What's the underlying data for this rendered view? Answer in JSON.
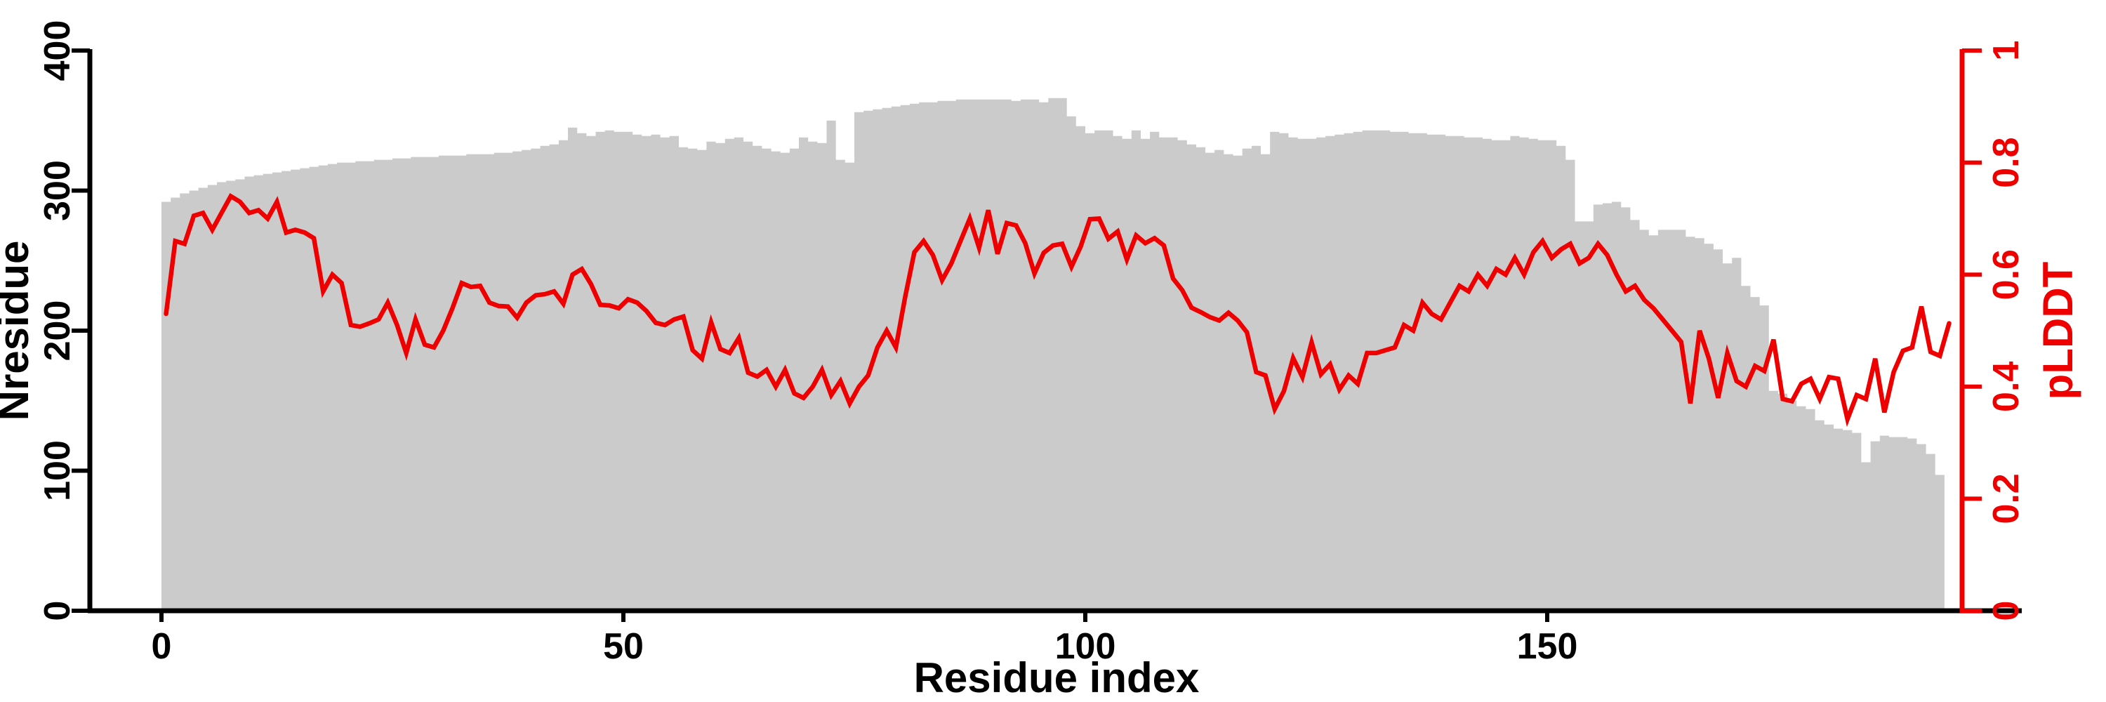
{
  "chart_data": {
    "type": "bar+line",
    "title": "",
    "x": {
      "label": "Residue index",
      "ticks": [
        0,
        50,
        100,
        150
      ],
      "tick_labels": [
        "0",
        "50",
        "100",
        "150"
      ],
      "range": [
        0,
        194
      ]
    },
    "y_left": {
      "label": "Nresidue",
      "ticks": [
        0,
        100,
        200,
        300,
        400
      ],
      "tick_labels": [
        "0",
        "100",
        "200",
        "300",
        "400"
      ],
      "range": [
        0,
        400
      ],
      "color": "#000000"
    },
    "y_right": {
      "label": "pLDDT",
      "ticks": [
        0,
        0.2,
        0.4,
        0.6,
        0.8,
        1
      ],
      "tick_labels": [
        "0",
        "0.2",
        "0.4",
        "0.6",
        "0.8",
        "1"
      ],
      "range": [
        0,
        1
      ],
      "color": "#ee0000"
    },
    "grid": false,
    "legend": "none",
    "bars": {
      "name": "Nresidue",
      "color": "#cbcbcb",
      "values": [
        292,
        295,
        298,
        300,
        302,
        304,
        306,
        307,
        308,
        310,
        311,
        312,
        313,
        314,
        315,
        316,
        317,
        318,
        319,
        320,
        320,
        321,
        321,
        322,
        322,
        323,
        323,
        324,
        324,
        324,
        325,
        325,
        325,
        326,
        326,
        326,
        327,
        327,
        328,
        329,
        330,
        332,
        333,
        336,
        345,
        341,
        339,
        342,
        343,
        342,
        342,
        340,
        339,
        340,
        338,
        339,
        331,
        330,
        329,
        335,
        334,
        337,
        338,
        335,
        332,
        330,
        328,
        327,
        330,
        338,
        335,
        334,
        350,
        322,
        320,
        356,
        357,
        358,
        359,
        360,
        361,
        362,
        363,
        363,
        364,
        364,
        365,
        365,
        365,
        365,
        365,
        365,
        364,
        365,
        365,
        363,
        366,
        366,
        353,
        346,
        341,
        343,
        343,
        339,
        337,
        343,
        337,
        342,
        338,
        338,
        336,
        333,
        331,
        327,
        329,
        326,
        325,
        330,
        332,
        326,
        342,
        341,
        338,
        337,
        337,
        338,
        339,
        340,
        341,
        342,
        343,
        343,
        343,
        342,
        342,
        341,
        341,
        340,
        340,
        339,
        339,
        338,
        338,
        337,
        336,
        336,
        339,
        338,
        337,
        336,
        336,
        332,
        322,
        278,
        278,
        290,
        291,
        292,
        288,
        279,
        272,
        268,
        272,
        272,
        272,
        267,
        266,
        262,
        258,
        248,
        252,
        232,
        224,
        218,
        157,
        155,
        150,
        146,
        144,
        136,
        133,
        130,
        129,
        127,
        106,
        121,
        125,
        124,
        124,
        123,
        119,
        112,
        97
      ]
    },
    "line": {
      "name": "pLDDT",
      "color": "#ee0000",
      "stroke_width": 6.5,
      "values": [
        0.53,
        0.66,
        0.655,
        0.705,
        0.71,
        0.68,
        0.71,
        0.74,
        0.73,
        0.71,
        0.715,
        0.7,
        0.73,
        0.675,
        0.68,
        0.675,
        0.665,
        0.57,
        0.6,
        0.585,
        0.51,
        0.507,
        0.513,
        0.52,
        0.55,
        0.51,
        0.46,
        0.52,
        0.475,
        0.47,
        0.5,
        0.54,
        0.585,
        0.578,
        0.58,
        0.55,
        0.544,
        0.543,
        0.523,
        0.55,
        0.563,
        0.565,
        0.57,
        0.548,
        0.6,
        0.61,
        0.583,
        0.546,
        0.545,
        0.54,
        0.556,
        0.55,
        0.535,
        0.514,
        0.51,
        0.52,
        0.525,
        0.465,
        0.45,
        0.515,
        0.467,
        0.46,
        0.487,
        0.425,
        0.418,
        0.43,
        0.4,
        0.43,
        0.388,
        0.38,
        0.4,
        0.43,
        0.385,
        0.41,
        0.37,
        0.4,
        0.42,
        0.47,
        0.5,
        0.47,
        0.56,
        0.64,
        0.66,
        0.635,
        0.59,
        0.62,
        0.66,
        0.7,
        0.648,
        0.715,
        0.637,
        0.692,
        0.688,
        0.656,
        0.602,
        0.639,
        0.652,
        0.655,
        0.614,
        0.65,
        0.699,
        0.7,
        0.664,
        0.677,
        0.627,
        0.67,
        0.656,
        0.665,
        0.652,
        0.593,
        0.572,
        0.541,
        0.533,
        0.524,
        0.518,
        0.532,
        0.518,
        0.497,
        0.426,
        0.42,
        0.36,
        0.392,
        0.451,
        0.417,
        0.479,
        0.422,
        0.44,
        0.395,
        0.42,
        0.405,
        0.46,
        0.46,
        0.465,
        0.47,
        0.51,
        0.5,
        0.55,
        0.53,
        0.52,
        0.55,
        0.58,
        0.57,
        0.6,
        0.58,
        0.61,
        0.6,
        0.63,
        0.6,
        0.64,
        0.66,
        0.63,
        0.645,
        0.655,
        0.62,
        0.63,
        0.655,
        0.635,
        0.6,
        0.57,
        0.58,
        0.555,
        0.54,
        0.52,
        0.5,
        0.48,
        0.37,
        0.5,
        0.45,
        0.38,
        0.46,
        0.41,
        0.4,
        0.437,
        0.428,
        0.484,
        0.378,
        0.374,
        0.405,
        0.414,
        0.378,
        0.417,
        0.414,
        0.342,
        0.385,
        0.378,
        0.45,
        0.354,
        0.426,
        0.464,
        0.47,
        0.543,
        0.462,
        0.455,
        0.513
      ]
    }
  }
}
